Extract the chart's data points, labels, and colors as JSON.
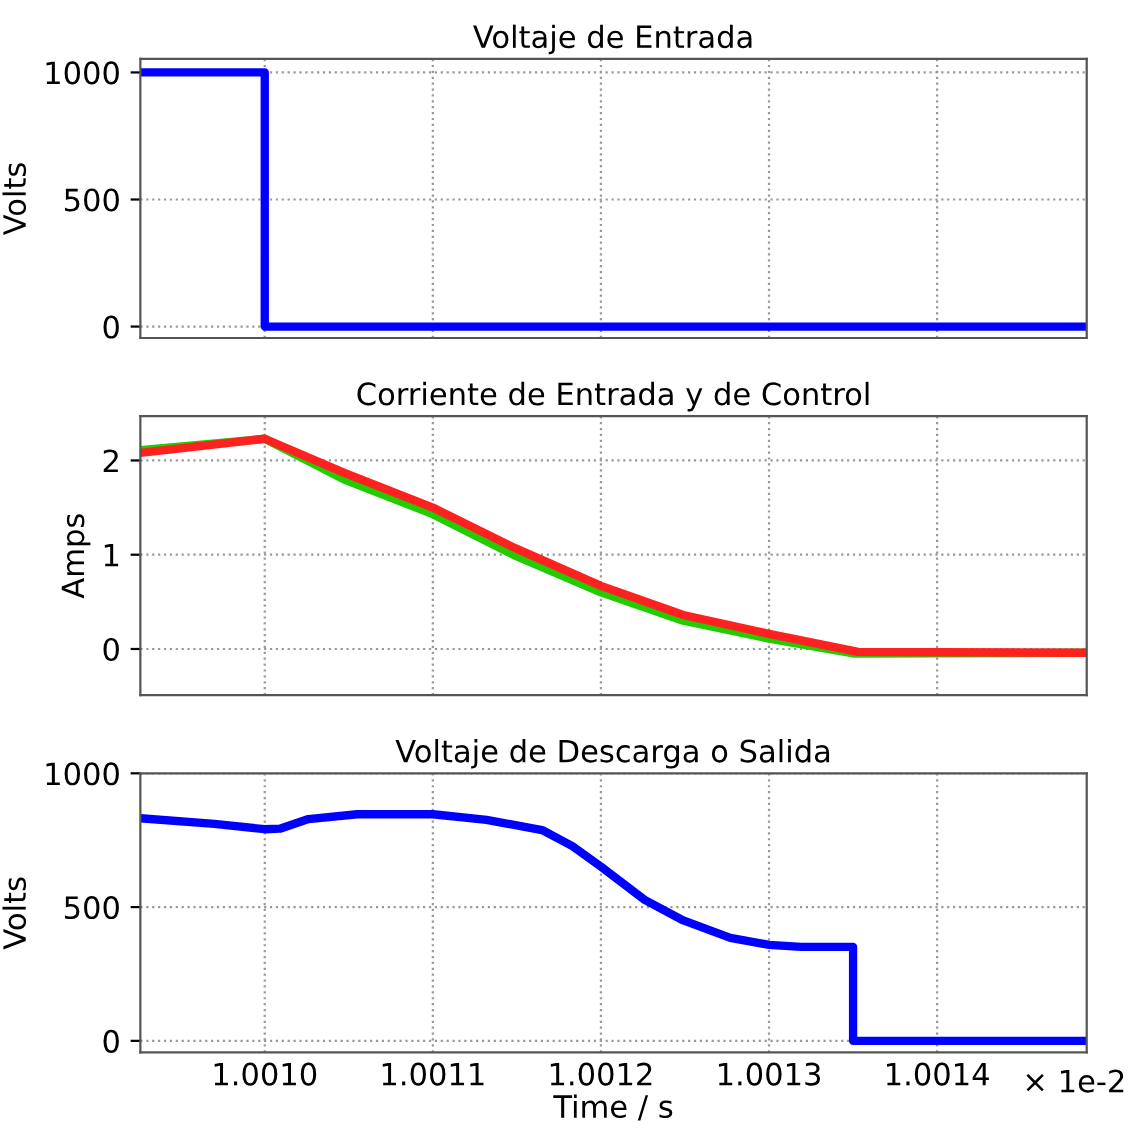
{
  "chart_data": [
    {
      "type": "line",
      "title": "Voltaje de Entrada",
      "ylabel": "Volts",
      "xlim": [
        1.000926,
        1.001489
      ],
      "xticks": [
        {
          "value": 1.001,
          "label": null
        },
        {
          "value": 1.0011,
          "label": null
        },
        {
          "value": 1.0012,
          "label": null
        },
        {
          "value": 1.0013,
          "label": null
        },
        {
          "value": 1.0014,
          "label": null
        }
      ],
      "ylim": [
        -45,
        1053
      ],
      "yticks": [
        0,
        500,
        1000
      ],
      "grid": true,
      "tick_labels": "y",
      "series": [
        {
          "color": "#0000ff",
          "x": [
            1.000926,
            1.001,
            1.001,
            1.001489
          ],
          "values": [
            1000,
            1000,
            0,
            0
          ]
        }
      ]
    },
    {
      "type": "line",
      "title": "Corriente de Entrada y de Control",
      "ylabel": "Amps",
      "xlim": [
        1.000926,
        1.001489
      ],
      "xticks": [
        {
          "value": 1.001,
          "label": null
        },
        {
          "value": 1.0011,
          "label": null
        },
        {
          "value": 1.0012,
          "label": null
        },
        {
          "value": 1.0013,
          "label": null
        },
        {
          "value": 1.0014,
          "label": null
        }
      ],
      "ylim": [
        -0.49,
        2.47
      ],
      "yticks": [
        0,
        1,
        2
      ],
      "grid": true,
      "tick_labels": "y",
      "series": [
        {
          "color": "#22cc00",
          "x": [
            1.000926,
            1.001,
            1.001047,
            1.0011,
            1.001149,
            1.0012,
            1.001249,
            1.0013,
            1.001351,
            1.001489
          ],
          "values": [
            2.11,
            2.23,
            1.8,
            1.43,
            0.99,
            0.6,
            0.3,
            0.11,
            -0.05,
            -0.04
          ]
        },
        {
          "color": "#ff2020",
          "x": [
            1.000926,
            1.001,
            1.001047,
            1.0011,
            1.001149,
            1.0012,
            1.001249,
            1.0013,
            1.001353,
            1.001489
          ],
          "values": [
            2.08,
            2.23,
            1.87,
            1.5,
            1.07,
            0.67,
            0.36,
            0.16,
            -0.03,
            -0.04
          ]
        }
      ]
    },
    {
      "type": "line",
      "title": "Voltaje de Descarga o Salida",
      "ylabel": "Volts",
      "xlabel": "Time / s",
      "annotations": [
        "× 1e-2"
      ],
      "xlim": [
        1.000926,
        1.001489
      ],
      "xticks": [
        {
          "value": 1.001,
          "label": "1.0010"
        },
        {
          "value": 1.0011,
          "label": "1.0011"
        },
        {
          "value": 1.0012,
          "label": "1.0012"
        },
        {
          "value": 1.0013,
          "label": "1.0013"
        },
        {
          "value": 1.0014,
          "label": "1.0014"
        }
      ],
      "ylim": [
        -43,
        1000
      ],
      "yticks": [
        0,
        500,
        1000
      ],
      "grid": true,
      "series": [
        {
          "color": "#0000ff",
          "x": [
            1.000926,
            1.00097,
            1.001,
            1.001009,
            1.001026,
            1.001055,
            1.0011,
            1.001132,
            1.001165,
            1.001183,
            1.0012,
            1.001226,
            1.001249,
            1.001277,
            1.0013,
            1.001319,
            1.00135,
            1.00135,
            1.001489
          ],
          "values": [
            832,
            811,
            791,
            793,
            829,
            847,
            847,
            826,
            788,
            728,
            651,
            527,
            450,
            385,
            359,
            351,
            351,
            0,
            0
          ]
        }
      ]
    }
  ]
}
